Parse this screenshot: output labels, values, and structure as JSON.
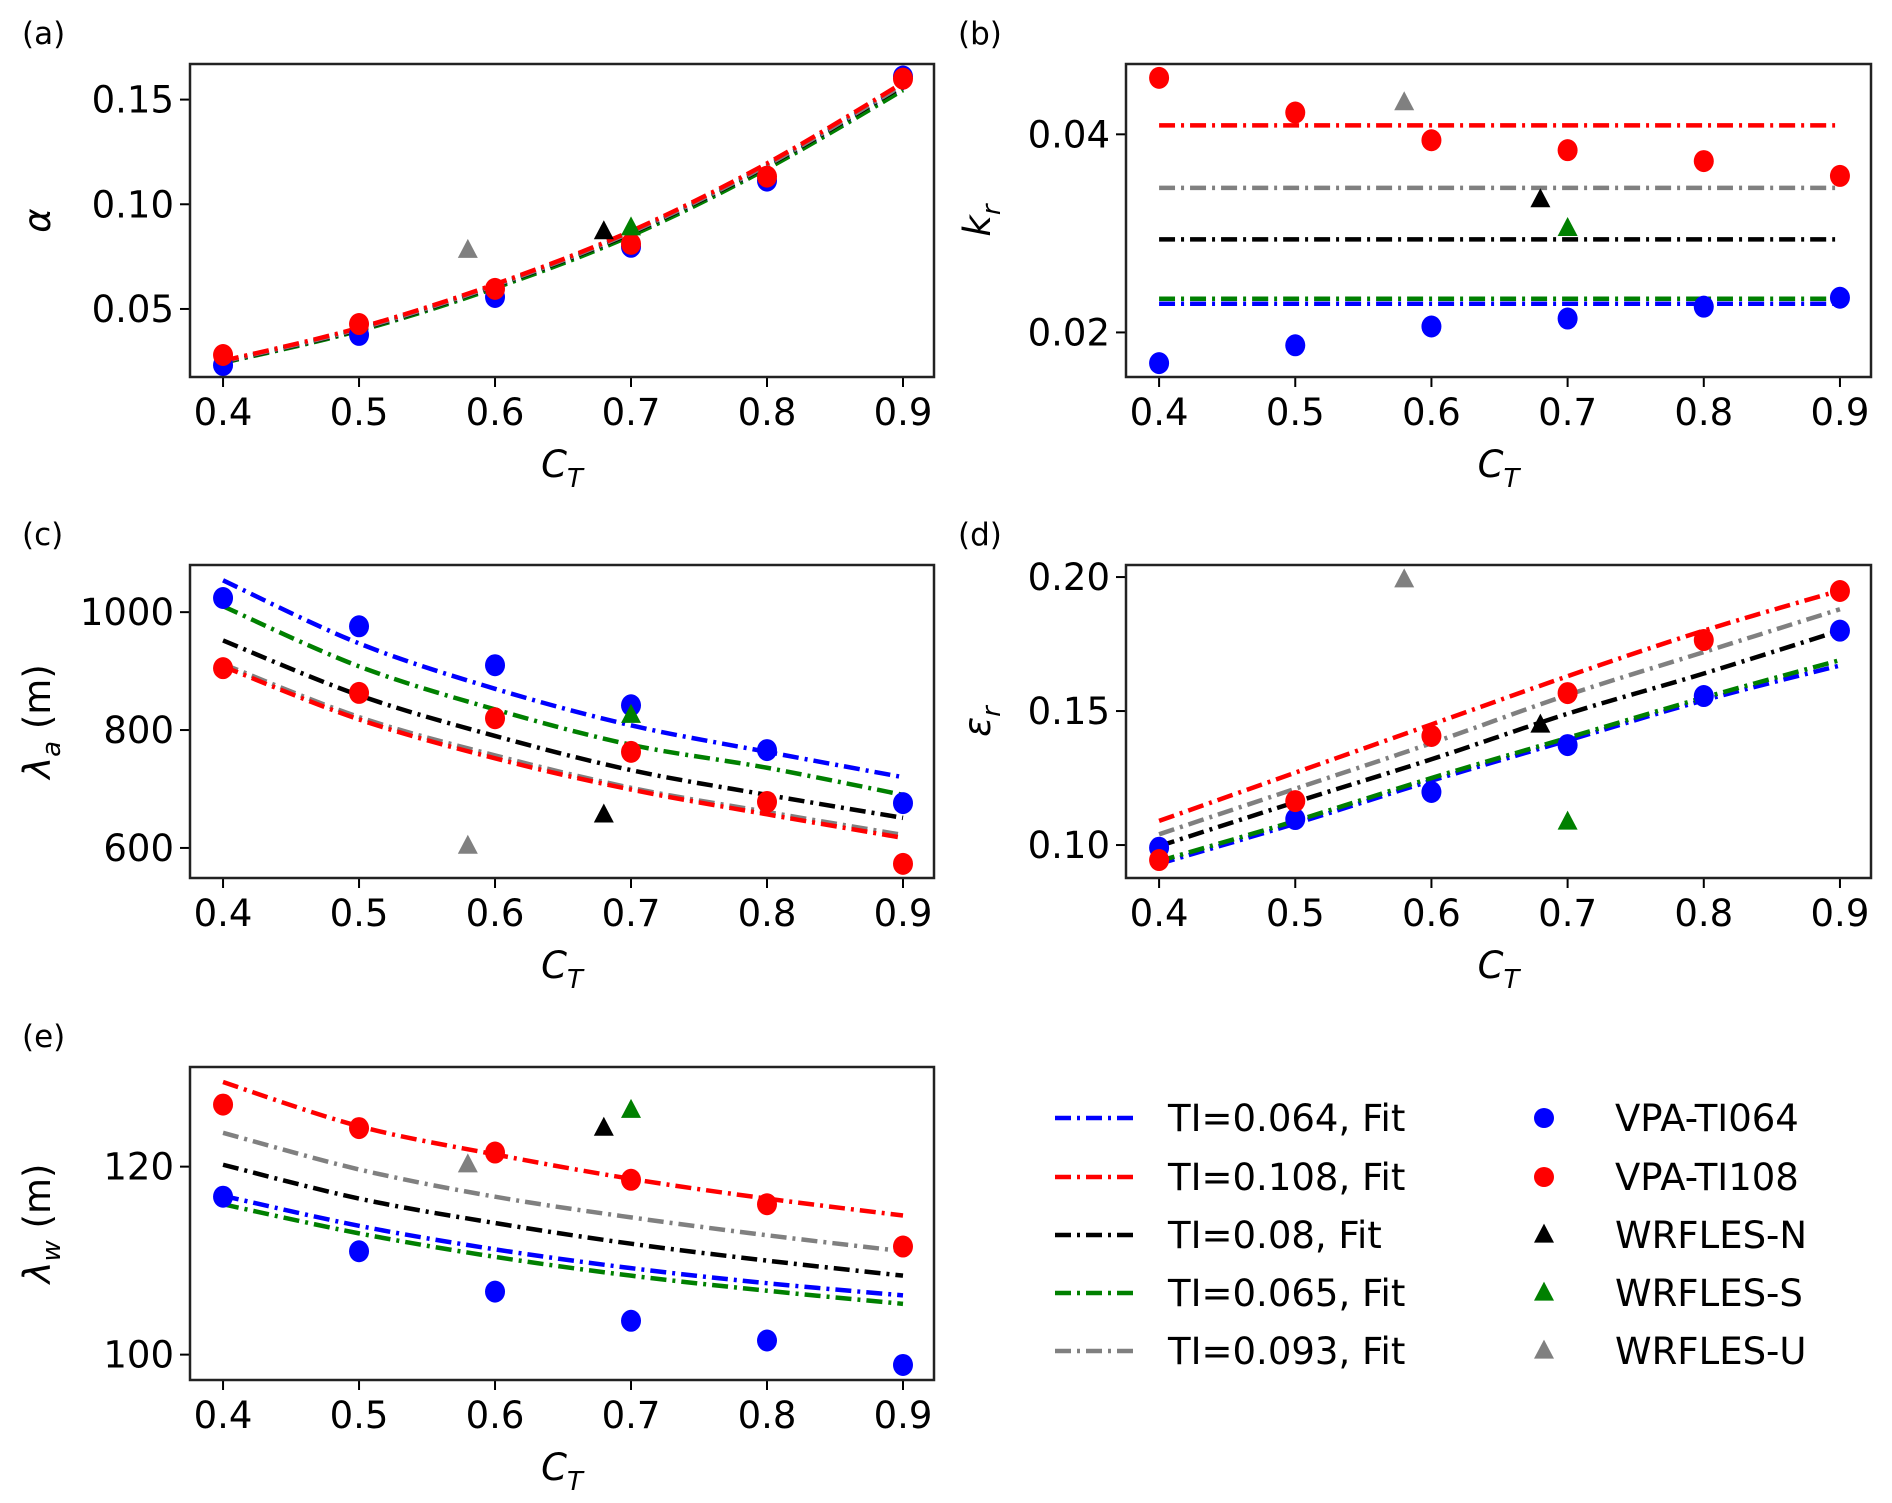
{
  "chart_data": {
    "type": "scatter",
    "layout": "5 panels (a)-(e) in a 3x2 grid with a shared legend in the bottom-right cell",
    "colors": {
      "TI064": "#0000ff",
      "TI108": "#ff0000",
      "TI080": "#000000",
      "TI065": "#008000",
      "TI093": "#808080"
    },
    "legend": {
      "placement": "bottom-right",
      "fits": [
        {
          "key": "TI064",
          "label": "TI=0.064, Fit",
          "style": "dash-dot"
        },
        {
          "key": "TI108",
          "label": "TI=0.108, Fit",
          "style": "dash-dot"
        },
        {
          "key": "TI080",
          "label": "TI=0.08, Fit",
          "style": "dash-dot"
        },
        {
          "key": "TI065",
          "label": "TI=0.065, Fit",
          "style": "dash-dot"
        },
        {
          "key": "TI093",
          "label": "TI=0.093, Fit",
          "style": "dash-dot"
        }
      ],
      "markers": [
        {
          "key": "TI064",
          "label": "VPA-TI064",
          "marker": "circle"
        },
        {
          "key": "TI108",
          "label": "VPA-TI108",
          "marker": "circle"
        },
        {
          "key": "TI080",
          "label": "WRFLES-N",
          "marker": "triangle"
        },
        {
          "key": "TI065",
          "label": "WRFLES-S",
          "marker": "triangle"
        },
        {
          "key": "TI093",
          "label": "WRFLES-U",
          "marker": "triangle"
        }
      ]
    },
    "x": [
      0.4,
      0.5,
      0.6,
      0.7,
      0.8,
      0.9
    ],
    "xticks": [
      "0.4",
      "0.5",
      "0.6",
      "0.7",
      "0.8",
      "0.9"
    ],
    "xlim": [
      0.3757,
      0.9228
    ],
    "panels": [
      {
        "tag": "(a)",
        "xlabel": "C",
        "xlabel_sub": "T",
        "ylabel": "α",
        "ylabel_sub": "",
        "ylim": [
          0.0175,
          0.167
        ],
        "yticks": [
          0.05,
          0.1,
          0.15
        ],
        "ytick_labels": [
          "0.05",
          "0.10",
          "0.15"
        ],
        "fits": [
          {
            "key": "TI064",
            "values": [
              0.0245,
              0.0398,
              0.0605,
              0.0855,
              0.1175,
              0.1555
            ]
          },
          {
            "key": "TI065",
            "values": [
              0.0243,
              0.0396,
              0.06,
              0.085,
              0.117,
              0.1545
            ]
          },
          {
            "key": "TI080",
            "values": [
              0.0247,
              0.0402,
              0.061,
              0.0862,
              0.1183,
              0.1565
            ]
          },
          {
            "key": "TI093",
            "values": [
              0.0249,
              0.0405,
              0.0613,
              0.0866,
              0.1187,
              0.157
            ]
          },
          {
            "key": "TI108",
            "values": [
              0.0252,
              0.041,
              0.0618,
              0.0872,
              0.1195,
              0.158
            ]
          }
        ],
        "vpa": [
          {
            "key": "TI064",
            "values": [
              0.0232,
              0.0376,
              0.0557,
              0.0797,
              0.1113,
              0.161
            ]
          },
          {
            "key": "TI108",
            "values": [
              0.028,
              0.0428,
              0.0596,
              0.0811,
              0.1132,
              0.16
            ]
          }
        ],
        "wrfles": [
          {
            "key": "TI080",
            "x": 0.68,
            "y": 0.0869
          },
          {
            "key": "TI065",
            "x": 0.7,
            "y": 0.0888
          },
          {
            "key": "TI093",
            "x": 0.58,
            "y": 0.078
          }
        ]
      },
      {
        "tag": "(b)",
        "xlabel": "C",
        "xlabel_sub": "T",
        "ylabel": "k",
        "ylabel_sub": "r",
        "ylim": [
          0.0155,
          0.0471
        ],
        "yticks": [
          0.02,
          0.04
        ],
        "ytick_labels": [
          "0.02",
          "0.04"
        ],
        "fits": [
          {
            "key": "TI065",
            "values": [
              0.0234,
              0.0234,
              0.0234,
              0.0234,
              0.0234,
              0.0234
            ]
          },
          {
            "key": "TI064",
            "values": [
              0.0229,
              0.0229,
              0.0229,
              0.0229,
              0.0229,
              0.0229
            ]
          },
          {
            "key": "TI080",
            "values": [
              0.0294,
              0.0294,
              0.0294,
              0.0294,
              0.0294,
              0.0294
            ]
          },
          {
            "key": "TI093",
            "values": [
              0.0346,
              0.0346,
              0.0346,
              0.0346,
              0.0346,
              0.0346
            ]
          },
          {
            "key": "TI108",
            "values": [
              0.0409,
              0.0409,
              0.0409,
              0.0409,
              0.0409,
              0.0409
            ]
          }
        ],
        "vpa": [
          {
            "key": "TI064",
            "values": [
              0.0169,
              0.0187,
              0.0206,
              0.0214,
              0.0226,
              0.0235
            ]
          },
          {
            "key": "TI108",
            "values": [
              0.0457,
              0.0422,
              0.0394,
              0.0384,
              0.0373,
              0.0358
            ]
          }
        ],
        "wrfles": [
          {
            "key": "TI080",
            "x": 0.68,
            "y": 0.0334
          },
          {
            "key": "TI065",
            "x": 0.7,
            "y": 0.0305
          },
          {
            "key": "TI093",
            "x": 0.58,
            "y": 0.0432
          }
        ]
      },
      {
        "tag": "(c)",
        "xlabel": "C",
        "xlabel_sub": "T",
        "ylabel": "λ",
        "ylabel_sub": "a",
        "ylabel_unit": " (m)",
        "ylim": [
          549,
          1080
        ],
        "yticks": [
          600,
          800,
          1000
        ],
        "ytick_labels": [
          "600",
          "800",
          "1000"
        ],
        "fits": [
          {
            "key": "TI064",
            "values": [
              1054,
              947,
              870,
              808,
              763,
              720
            ]
          },
          {
            "key": "TI065",
            "values": [
              1010,
              908,
              835,
              775,
              736,
              690
            ]
          },
          {
            "key": "TI080",
            "values": [
              952,
              859,
              790,
              732,
              690,
              651
            ]
          },
          {
            "key": "TI093",
            "values": [
              912,
              822,
              757,
              702,
              661,
              622
            ]
          },
          {
            "key": "TI108",
            "values": [
              908,
              818,
              752,
              699,
              657,
              617
            ]
          }
        ],
        "vpa": [
          {
            "key": "TI064",
            "values": [
              1024,
              976,
              910,
              842,
              766,
              676
            ]
          },
          {
            "key": "TI108",
            "values": [
              905,
              863,
              820,
              763,
              678,
              573
            ]
          }
        ],
        "wrfles": [
          {
            "key": "TI080",
            "x": 0.68,
            "y": 656
          },
          {
            "key": "TI065",
            "x": 0.7,
            "y": 825
          },
          {
            "key": "TI093",
            "x": 0.58,
            "y": 603
          }
        ]
      },
      {
        "tag": "(d)",
        "xlabel": "C",
        "xlabel_sub": "T",
        "ylabel": "ε",
        "ylabel_sub": "r",
        "ylim": [
          0.0877,
          0.2045
        ],
        "yticks": [
          0.1,
          0.15,
          0.2
        ],
        "ytick_labels": [
          "0.10",
          "0.15",
          "0.20"
        ],
        "fits": [
          {
            "key": "TI064",
            "values": [
              0.093,
              0.108,
              0.124,
              0.139,
              0.154,
              0.167
            ]
          },
          {
            "key": "TI065",
            "values": [
              0.094,
              0.109,
              0.125,
              0.14,
              0.155,
              0.169
            ]
          },
          {
            "key": "TI080",
            "values": [
              0.0996,
              0.116,
              0.132,
              0.149,
              0.164,
              0.18
            ]
          },
          {
            "key": "TI093",
            "values": [
              0.104,
              0.121,
              0.138,
              0.156,
              0.172,
              0.188
            ]
          },
          {
            "key": "TI108",
            "values": [
              0.109,
              0.127,
              0.145,
              0.163,
              0.18,
              0.195
            ]
          }
        ],
        "vpa": [
          {
            "key": "TI064",
            "values": [
              0.099,
              0.1097,
              0.1198,
              0.1373,
              0.1556,
              0.18
            ]
          },
          {
            "key": "TI108",
            "values": [
              0.0944,
              0.1164,
              0.1407,
              0.1567,
              0.1765,
              0.1948
            ]
          }
        ],
        "wrfles": [
          {
            "key": "TI080",
            "x": 0.68,
            "y": 0.1448
          },
          {
            "key": "TI065",
            "x": 0.7,
            "y": 0.1086
          },
          {
            "key": "TI093",
            "x": 0.58,
            "y": 0.199
          }
        ]
      },
      {
        "tag": "(e)",
        "xlabel": "C",
        "xlabel_sub": "T",
        "ylabel": "λ",
        "ylabel_sub": "w",
        "ylabel_unit": " (m)",
        "ylim": [
          97.3,
          130.6
        ],
        "yticks": [
          100,
          120
        ],
        "ytick_labels": [
          "100",
          "120"
        ],
        "fits": [
          {
            "key": "TI064",
            "values": [
              116.9,
              113.7,
              111.2,
              109.2,
              107.6,
              106.3
            ]
          },
          {
            "key": "TI065",
            "values": [
              116.0,
              112.9,
              110.4,
              108.4,
              106.8,
              105.4
            ]
          },
          {
            "key": "TI080",
            "values": [
              120.2,
              116.6,
              114.0,
              111.8,
              110.0,
              108.4
            ]
          },
          {
            "key": "TI093",
            "values": [
              123.6,
              119.7,
              116.8,
              114.6,
              112.7,
              111.0
            ]
          },
          {
            "key": "TI108",
            "values": [
              129.0,
              124.3,
              121.3,
              118.7,
              116.6,
              114.8
            ]
          }
        ],
        "vpa": [
          {
            "key": "TI064",
            "values": [
              116.8,
              111.0,
              106.7,
              103.6,
              101.5,
              98.9
            ]
          },
          {
            "key": "TI108",
            "values": [
              126.6,
              124.1,
              121.5,
              118.6,
              116.0,
              111.5
            ]
          }
        ],
        "wrfles": [
          {
            "key": "TI080",
            "x": 0.68,
            "y": 124.1
          },
          {
            "key": "TI065",
            "x": 0.7,
            "y": 126.0
          },
          {
            "key": "TI093",
            "x": 0.58,
            "y": 120.2
          }
        ]
      }
    ]
  }
}
